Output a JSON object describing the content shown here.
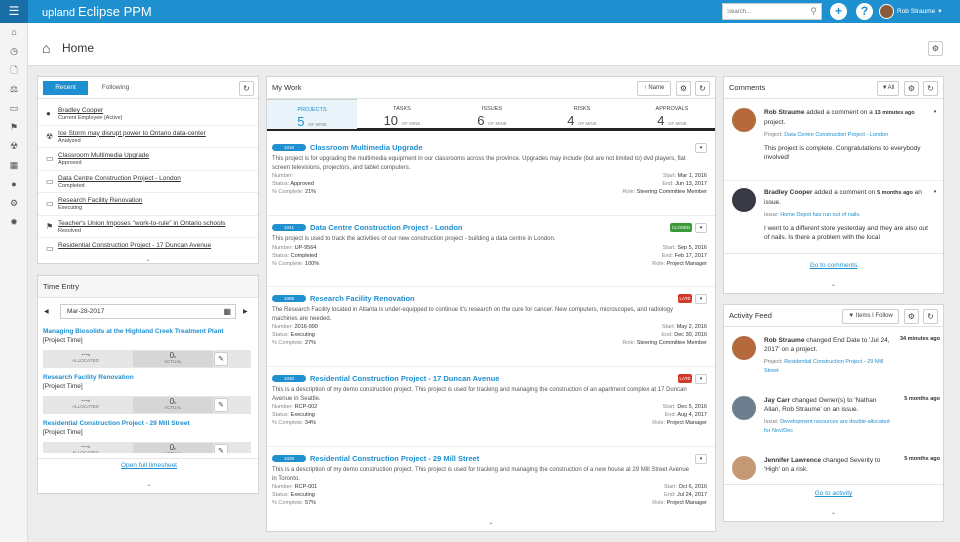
{
  "app": {
    "logo_prefix": "upland",
    "logo_name": "Eclipse PPM",
    "search_placeholder": "Search...",
    "user": "Rob Straume"
  },
  "page": {
    "title": "Home"
  },
  "recent": {
    "tab_recent": "Recent",
    "tab_following": "Following",
    "items": [
      {
        "name": "Bradley Cooper",
        "status": "Current Employee (Active)",
        "icon": "person-icon"
      },
      {
        "name": "Ice Storm may disrupt power to Ontario data-center",
        "status": "Analyzed",
        "icon": "radiation-icon"
      },
      {
        "name": "Classroom Multimedia Upgrade",
        "status": "Approved",
        "icon": "folder-icon"
      },
      {
        "name": "Data Centre Construction Project - London",
        "status": "Completed",
        "icon": "folder-icon"
      },
      {
        "name": "Research Facility Renovation",
        "status": "Executing",
        "icon": "folder-icon"
      },
      {
        "name": "Teacher's Union Imposes \"work-to-rule\" in Ontario schools",
        "status": "Resolved",
        "icon": "flag-icon"
      },
      {
        "name": "Residential Construction Project - 17 Duncan Avenue",
        "status": "",
        "icon": "folder-icon"
      }
    ]
  },
  "time_entry": {
    "title": "Time Entry",
    "date": "Mar-28-2017",
    "allocated": "ALLOCATED",
    "actual": "ACTUAL",
    "dash": "---",
    "unit": "h",
    "zero": "0",
    "project_time": "[Project Time]",
    "footer": "Open full timesheet",
    "entries": [
      {
        "name": "Managing Biosolids at the Highland Creek Treatment Plant"
      },
      {
        "name": "Research Facility Renovation"
      },
      {
        "name": "Residential Construction Project - 29 Mill Street"
      }
    ]
  },
  "mywork": {
    "title": "My Work",
    "sort": "Name",
    "tabs": [
      {
        "label": "PROJECTS",
        "count": "5",
        "sub": "OF MINE"
      },
      {
        "label": "TASKS",
        "count": "10",
        "sub": "OF MINE"
      },
      {
        "label": "ISSUES",
        "count": "6",
        "sub": "OF MINE"
      },
      {
        "label": "RISKS",
        "count": "4",
        "sub": "OF MINE"
      },
      {
        "label": "APPROVALS",
        "count": "4",
        "sub": "OF MINE"
      }
    ],
    "labels": {
      "number": "Number:",
      "status": "Status:",
      "complete": "% Complete:",
      "start": "Start:",
      "end": "End:",
      "role": "Role:"
    },
    "items": [
      {
        "id": "1016",
        "title": "Classroom Multimedia Upgrade",
        "desc": "This project is for upgrading the multimedia equipment in our classrooms across the province.  Upgrades may include (but are not limited to) dvd players, flat screen televisions, projectors, and tablet computers.",
        "number": "",
        "status": "Approved",
        "complete": "21%",
        "start": "Mar 1, 2016",
        "end": "Jun 13, 2017",
        "role": "Steering Committee Member",
        "tag": ""
      },
      {
        "id": "1041",
        "title": "Data Centre Construction Project - London",
        "desc": "This project is used to track the activities of our new construction project - building a data centre in London.",
        "number": "UP-9564",
        "status": "Completed",
        "complete": "100%",
        "start": "Sep 5, 2016",
        "end": "Feb 17, 2017",
        "role": "Project Manager",
        "tag": "CLOSED"
      },
      {
        "id": "1008",
        "title": "Research Facility Renovation",
        "desc": "The Research Facility located in Atlanta is under-equipped to continue it's research on the cure for cancer.  New computers, microscopes, and radiology machines are needed.",
        "number": "2016-990",
        "status": "Executing",
        "complete": "27%",
        "start": "May 2, 2016",
        "end": "Dec 30, 2016",
        "role": "Steering Committee Member",
        "tag": "LATE"
      },
      {
        "id": "1030",
        "title": "Residential Construction Project - 17 Duncan Avenue",
        "desc": "This is a description of my demo construction project.  This project is used for tracking and managing the construction of an apartment complex at 17 Duncan Avenue in Seattle.",
        "number": "RCP-002",
        "status": "Executing",
        "complete": "34%",
        "start": "Dec 5, 2016",
        "end": "Aug 4, 2017",
        "role": "Project Manager",
        "tag": "LATE"
      },
      {
        "id": "1029",
        "title": "Residential Construction Project - 29 Mill Street",
        "desc": "This is a description of my demo construction project.  This project is used for tracking and managing the construction of a new house at 29 Mill Street Avenue in Toronto.",
        "number": "RCP-001",
        "status": "Executing",
        "complete": "57%",
        "start": "Oct 6, 2016",
        "end": "Jul 24, 2017",
        "role": "Project Manager",
        "tag": ""
      }
    ]
  },
  "comments": {
    "title": "Comments",
    "filter": "All",
    "footer": "Go to comments",
    "items": [
      {
        "who": "Rob Straume",
        "action": " added a comment on a ",
        "time": "13 minutes ago",
        "tail": " project.",
        "ref_label": "Project: ",
        "ref": "Data Centre Construction Project - London",
        "body": "This project is complete.  Congratulations to everybody involved!"
      },
      {
        "who": "Bradley Cooper",
        "action": " added a comment on ",
        "time": "5 months ago",
        "tail": " an issue.",
        "ref_label": "Issue: ",
        "ref": "Home Depot has run out of nails.",
        "body": "I went to a different store yesterday and they are also out of nails.  Is there a problem with the local"
      }
    ]
  },
  "activity": {
    "title": "Activity Feed",
    "filter": "Items I Follow",
    "footer": "Go to activity",
    "items": [
      {
        "who": "Rob Straume",
        "text": " changed End Date to 'Jul 24, 2017' on a project.",
        "time": "34 minutes ago",
        "ref_label": "Project: ",
        "ref": "Residential Construction Project - 29 Mill Street"
      },
      {
        "who": "Jay Carr",
        "text": " changed Owner(s) to 'Nathan Allan, Rob Straume' on an issue.",
        "time": "5 months ago",
        "ref_label": "Issue: ",
        "ref": "Development resources are double-allocated for Nov/Dec"
      },
      {
        "who": "Jennifer Lawrence",
        "text": " changed Severity to 'High' on a risk.",
        "time": "5 months ago",
        "ref_label": "",
        "ref": ""
      }
    ]
  }
}
